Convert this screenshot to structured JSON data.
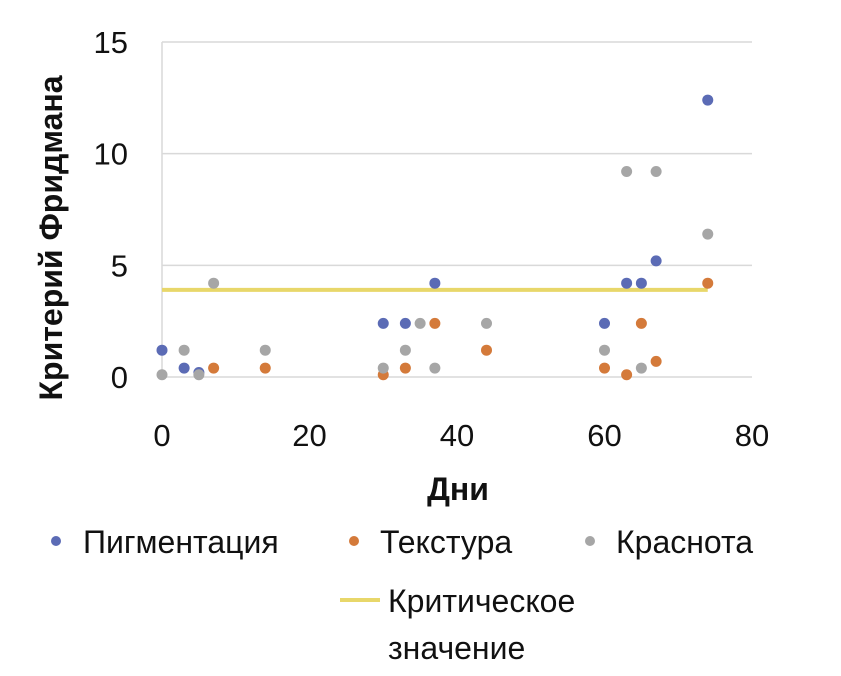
{
  "chart_data": {
    "type": "scatter",
    "title": "",
    "xlabel": "Дни",
    "ylabel": "Критерий Фридмана",
    "xlim": [
      0,
      80
    ],
    "ylim": [
      0,
      15
    ],
    "x_ticks": [
      "0",
      "20",
      "40",
      "60",
      "80"
    ],
    "y_ticks": [
      "0",
      "5",
      "10",
      "15"
    ],
    "grid": "horizontal",
    "legend_position": "bottom",
    "series": [
      {
        "name": "Пигментация",
        "color": "#5b6bb5",
        "points": [
          [
            0,
            1.2
          ],
          [
            3,
            0.4
          ],
          [
            5,
            0.2
          ],
          [
            30,
            2.4
          ],
          [
            33,
            2.4
          ],
          [
            37,
            4.2
          ],
          [
            60,
            2.4
          ],
          [
            63,
            4.2
          ],
          [
            65,
            4.2
          ],
          [
            67,
            5.2
          ],
          [
            74,
            12.4
          ]
        ]
      },
      {
        "name": "Текстура",
        "color": "#d47a3a",
        "points": [
          [
            7,
            0.4
          ],
          [
            14,
            0.4
          ],
          [
            30,
            0.1
          ],
          [
            33,
            0.4
          ],
          [
            37,
            2.4
          ],
          [
            44,
            1.2
          ],
          [
            60,
            0.4
          ],
          [
            63,
            0.1
          ],
          [
            65,
            2.4
          ],
          [
            67,
            0.7
          ],
          [
            74,
            4.2
          ]
        ]
      },
      {
        "name": "Краснота",
        "color": "#a6a6a6",
        "points": [
          [
            0,
            0.1
          ],
          [
            3,
            1.2
          ],
          [
            5,
            0.1
          ],
          [
            7,
            4.2
          ],
          [
            14,
            1.2
          ],
          [
            30,
            0.4
          ],
          [
            33,
            1.2
          ],
          [
            35,
            2.4
          ],
          [
            37,
            0.4
          ],
          [
            44,
            2.4
          ],
          [
            60,
            1.2
          ],
          [
            63,
            9.2
          ],
          [
            65,
            0.4
          ],
          [
            67,
            9.2
          ],
          [
            74,
            6.4
          ]
        ]
      }
    ],
    "reference_line": {
      "name": "Критическое значение",
      "label_lines": [
        "Критическое",
        "значение"
      ],
      "color": "#e8d76a",
      "y": 3.9,
      "x_range": [
        0,
        74
      ]
    }
  }
}
